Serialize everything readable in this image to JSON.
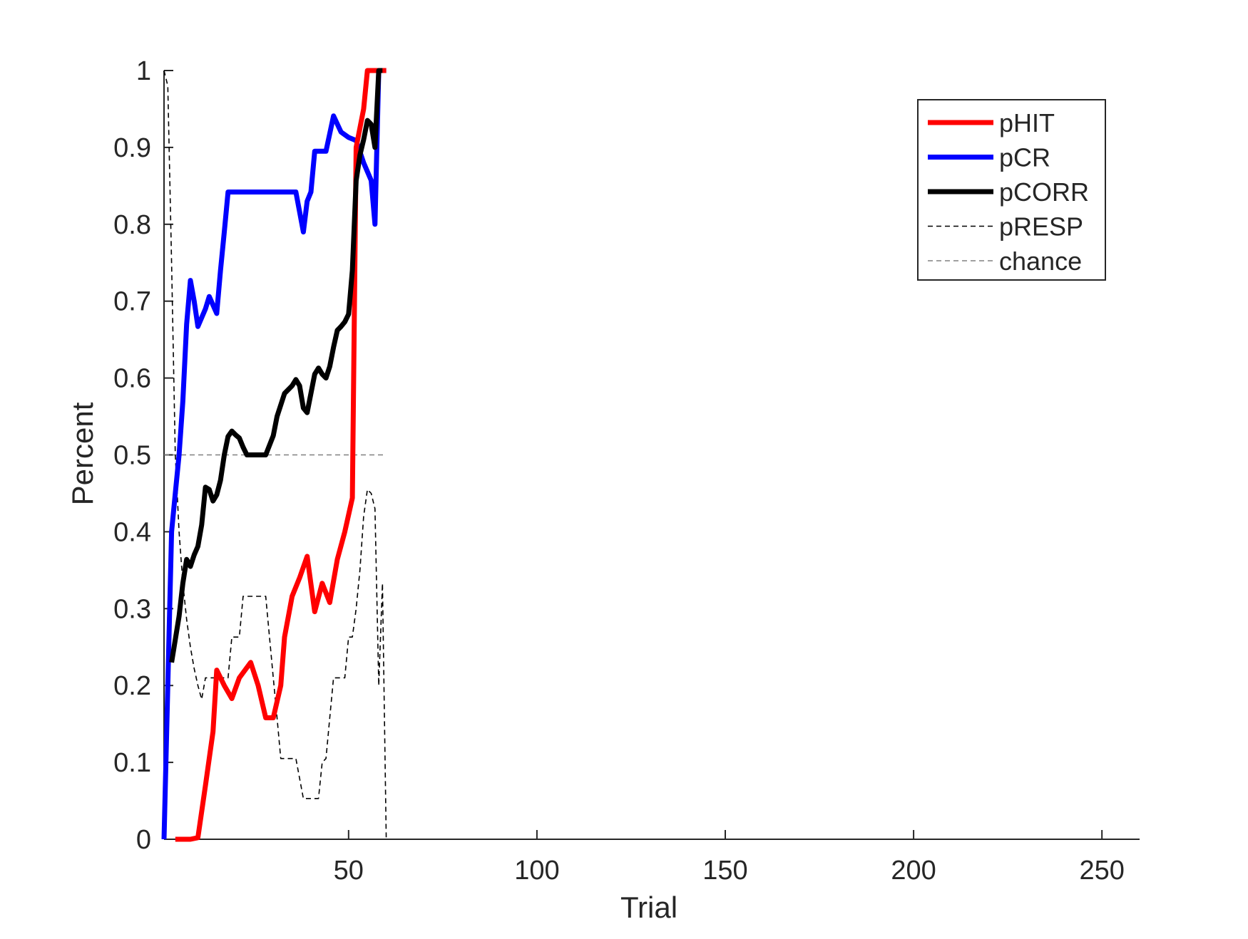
{
  "chart_data": {
    "type": "line",
    "title": "",
    "xlabel": "Trial",
    "ylabel": "Percent",
    "xlim": [
      1,
      260
    ],
    "ylim": [
      0,
      1
    ],
    "xticks": [
      50,
      100,
      150,
      200,
      250
    ],
    "xtick_labels": [
      "50",
      "100",
      "150",
      "200",
      "250"
    ],
    "yticks": [
      0,
      0.1,
      0.2,
      0.3,
      0.4,
      0.5,
      0.6,
      0.7,
      0.8,
      0.9,
      1
    ],
    "ytick_labels": [
      "0",
      "0.1",
      "0.2",
      "0.3",
      "0.4",
      "0.5",
      "0.6",
      "0.7",
      "0.8",
      "0.9",
      "1"
    ],
    "grid": false,
    "legend_position": "top-right",
    "series": [
      {
        "name": "pHIT",
        "color": "#ff0000",
        "style": "solid-thick",
        "x": [
          4,
          8,
          10,
          12,
          14,
          15,
          17,
          19,
          21,
          24,
          26,
          28,
          30,
          32,
          33,
          35,
          37,
          39,
          41,
          43,
          45,
          47,
          49,
          51,
          52,
          54,
          55,
          56,
          57,
          58,
          59,
          60
        ],
        "y": [
          0,
          0,
          0.002,
          0.07,
          0.14,
          0.22,
          0.2,
          0.183,
          0.21,
          0.23,
          0.2,
          0.158,
          0.158,
          0.2,
          0.263,
          0.316,
          0.34,
          0.368,
          0.296,
          0.333,
          0.308,
          0.364,
          0.4,
          0.444,
          0.9,
          0.95,
          1,
          1,
          1,
          1,
          1,
          1
        ]
      },
      {
        "name": "pCR",
        "color": "#0000ff",
        "style": "solid-thick",
        "x": [
          1,
          2,
          3,
          4,
          5,
          6,
          7,
          8,
          9,
          10,
          12,
          13,
          15,
          16,
          17,
          18,
          19,
          20,
          21,
          22,
          24,
          26,
          28,
          30,
          32,
          34,
          36,
          38,
          39,
          40,
          41,
          42,
          44,
          46,
          48,
          50,
          52,
          54,
          56,
          57,
          58,
          59,
          60
        ],
        "y": [
          0,
          0.2,
          0.4,
          0.45,
          0.5,
          0.57,
          0.67,
          0.727,
          0.7,
          0.667,
          0.69,
          0.706,
          0.684,
          0.74,
          0.79,
          0.842,
          0.842,
          0.842,
          0.842,
          0.842,
          0.842,
          0.842,
          0.842,
          0.842,
          0.842,
          0.842,
          0.842,
          0.79,
          0.83,
          0.842,
          0.895,
          0.895,
          0.895,
          0.941,
          0.92,
          0.913,
          0.909,
          0.88,
          0.857,
          0.8,
          1,
          1,
          1
        ]
      },
      {
        "name": "pCORR",
        "color": "#000000",
        "style": "solid-thick",
        "x": [
          3,
          5,
          6,
          7,
          8,
          9,
          10,
          11,
          12,
          13,
          14,
          15,
          16,
          17,
          18,
          19,
          20,
          21,
          22,
          23,
          24,
          25,
          26,
          28,
          30,
          31,
          33,
          35,
          36,
          37,
          38,
          39,
          40,
          41,
          42,
          43,
          44,
          45,
          46,
          47,
          48,
          49,
          50,
          51,
          52,
          53,
          54,
          55,
          56,
          57,
          58,
          59
        ],
        "y": [
          0.23,
          0.29,
          0.333,
          0.364,
          0.355,
          0.37,
          0.381,
          0.409,
          0.458,
          0.455,
          0.44,
          0.448,
          0.467,
          0.5,
          0.524,
          0.531,
          0.526,
          0.522,
          0.51,
          0.5,
          0.5,
          0.5,
          0.5,
          0.5,
          0.525,
          0.55,
          0.58,
          0.59,
          0.598,
          0.59,
          0.561,
          0.555,
          0.58,
          0.605,
          0.613,
          0.605,
          0.6,
          0.615,
          0.64,
          0.662,
          0.667,
          0.673,
          0.683,
          0.74,
          0.857,
          0.89,
          0.91,
          0.935,
          0.93,
          0.9,
          1,
          1
        ]
      },
      {
        "name": "pRESP",
        "color": "#000000",
        "style": "dashed-thin",
        "x": [
          1,
          2,
          3,
          4,
          5,
          6,
          7,
          8,
          9,
          10,
          11,
          12,
          14,
          16,
          18,
          19,
          20,
          21,
          22,
          24,
          26,
          28,
          30,
          31,
          32,
          33,
          34,
          36,
          38,
          39,
          40,
          41,
          42,
          43,
          44,
          45,
          46,
          48,
          49,
          50,
          51,
          52,
          53,
          54,
          55,
          56,
          57,
          58,
          59,
          60
        ],
        "y": [
          1,
          0.98,
          0.75,
          0.5,
          0.4,
          0.333,
          0.286,
          0.25,
          0.222,
          0.2,
          0.182,
          0.21,
          0.21,
          0.21,
          0.21,
          0.263,
          0.263,
          0.263,
          0.316,
          0.316,
          0.316,
          0.316,
          0.21,
          0.158,
          0.105,
          0.105,
          0.105,
          0.105,
          0.053,
          0.053,
          0.053,
          0.053,
          0.053,
          0.1,
          0.105,
          0.158,
          0.21,
          0.21,
          0.21,
          0.263,
          0.263,
          0.3,
          0.35,
          0.42,
          0.455,
          0.45,
          0.43,
          0.2,
          0.333,
          0
        ]
      },
      {
        "name": "chance",
        "color": "#808080",
        "style": "dashed-thin",
        "x": [
          1,
          60
        ],
        "y": [
          0.5,
          0.5
        ]
      }
    ]
  }
}
